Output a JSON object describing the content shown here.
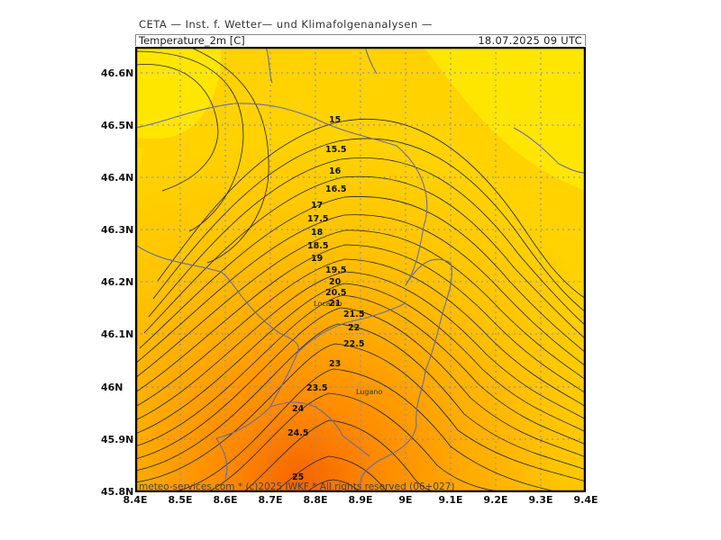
{
  "header": {
    "institution": "CETA — Inst. f. Wetter— und Klimafolgenanalysen —",
    "parameter": "Temperature_2m [C]",
    "datetime": "18.07.2025 09 UTC"
  },
  "footer": {
    "credit": "meteo-services.com * (c)2025 IWKF * All rights reserved (06+027)"
  },
  "map": {
    "y_ticks": [
      "46.6N",
      "46.5N",
      "46.4N",
      "46.3N",
      "46.2N",
      "46.1N",
      "46N",
      "45.9N",
      "45.8N"
    ],
    "x_ticks": [
      "8.4E",
      "8.5E",
      "8.6E",
      "8.7E",
      "8.8E",
      "8.9E",
      "9E",
      "9.1E",
      "9.2E",
      "9.3E",
      "9.4E"
    ],
    "cities": [
      {
        "name": "Locarno"
      },
      {
        "name": "Lugano"
      }
    ],
    "contour_labels": [
      "15",
      "15.5",
      "16",
      "16.5",
      "17",
      "17.5",
      "18",
      "18.5",
      "19",
      "19.5",
      "20",
      "20.5",
      "21",
      "21.5",
      "22",
      "22.5",
      "23",
      "23.5",
      "24",
      "24.5",
      "25"
    ],
    "colors": {
      "yellow": "#ffe600",
      "light_orange": "#ffcc00",
      "orange": "#ffa800",
      "dark_orange": "#ff8000",
      "deep_orange": "#f86a00",
      "contour": "#222222",
      "border": "#6b6b9a",
      "grid": "#8a8aaa"
    }
  }
}
